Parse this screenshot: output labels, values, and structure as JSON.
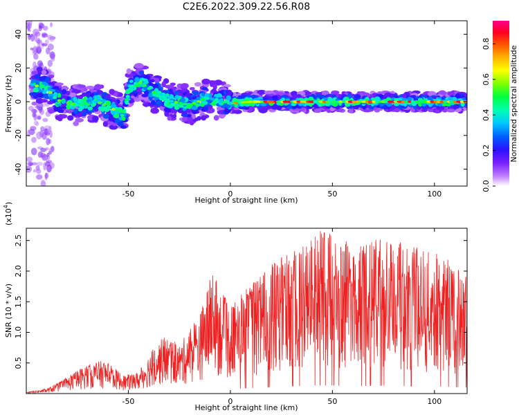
{
  "title": "C2E6.2022.309.22.56.R08",
  "chart_data": [
    {
      "type": "heatmap",
      "xlabel": "Height of straight line (km)",
      "ylabel": "Frequency (Hz)",
      "xlim": [
        -100,
        116
      ],
      "ylim": [
        -50,
        48
      ],
      "x_ticks": [
        -50,
        0,
        50,
        100
      ],
      "y_ticks": [
        -40,
        -20,
        0,
        20,
        40
      ],
      "colorbar": {
        "label": "Normalized spectral amplitude",
        "range": [
          0,
          0.93
        ],
        "ticks": [
          0.0,
          0.2,
          0.4,
          0.6,
          0.8
        ],
        "colormap": [
          "#ffffff",
          "#a020f0",
          "#3000ff",
          "#00b4ff",
          "#00ff90",
          "#60ff00",
          "#ffff00",
          "#ff8000",
          "#ff0000",
          "#ff0090"
        ]
      },
      "ridge": [
        {
          "x": -97,
          "y": 10
        },
        {
          "x": -90,
          "y": 8
        },
        {
          "x": -85,
          "y": 1
        },
        {
          "x": -75,
          "y": -2
        },
        {
          "x": -65,
          "y": 0
        },
        {
          "x": -58,
          "y": -4
        },
        {
          "x": -52,
          "y": -9
        },
        {
          "x": -50,
          "y": 8
        },
        {
          "x": -45,
          "y": 12
        },
        {
          "x": -40,
          "y": 8
        },
        {
          "x": -35,
          "y": 3
        },
        {
          "x": -28,
          "y": 0
        },
        {
          "x": -20,
          "y": -2
        },
        {
          "x": -12,
          "y": 2
        },
        {
          "x": -5,
          "y": 1
        },
        {
          "x": 0,
          "y": -1
        },
        {
          "x": 10,
          "y": 0
        },
        {
          "x": 30,
          "y": 0
        },
        {
          "x": 60,
          "y": 0
        },
        {
          "x": 90,
          "y": 0
        },
        {
          "x": 116,
          "y": 0
        }
      ]
    },
    {
      "type": "line",
      "xlabel": "Height of straight line (km)",
      "ylabel": "SNR (10 * v/v)",
      "yscale_label": "(x10",
      "yscale_exponent": "4",
      "yscale_suffix": ")",
      "xlim": [
        -100,
        116
      ],
      "ylim": [
        0,
        2.7
      ],
      "x_ticks": [
        -50,
        0,
        50,
        100
      ],
      "y_ticks": [
        0.5,
        1.0,
        1.5,
        2.0,
        2.5
      ],
      "series": [
        {
          "color": "#ee2020",
          "envelope": [
            {
              "x": -100,
              "y": 0.02
            },
            {
              "x": -90,
              "y": 0.08
            },
            {
              "x": -82,
              "y": 0.22
            },
            {
              "x": -72,
              "y": 0.45
            },
            {
              "x": -62,
              "y": 0.55
            },
            {
              "x": -52,
              "y": 0.3
            },
            {
              "x": -45,
              "y": 0.35
            },
            {
              "x": -38,
              "y": 0.75
            },
            {
              "x": -32,
              "y": 0.95
            },
            {
              "x": -25,
              "y": 0.8
            },
            {
              "x": -15,
              "y": 1.3
            },
            {
              "x": -9,
              "y": 2.0
            },
            {
              "x": 0,
              "y": 1.4
            },
            {
              "x": 10,
              "y": 1.8
            },
            {
              "x": 20,
              "y": 2.1
            },
            {
              "x": 30,
              "y": 2.35
            },
            {
              "x": 45,
              "y": 2.7
            },
            {
              "x": 60,
              "y": 2.45
            },
            {
              "x": 75,
              "y": 2.55
            },
            {
              "x": 90,
              "y": 2.4
            },
            {
              "x": 105,
              "y": 2.25
            },
            {
              "x": 116,
              "y": 1.95
            }
          ]
        }
      ]
    }
  ]
}
